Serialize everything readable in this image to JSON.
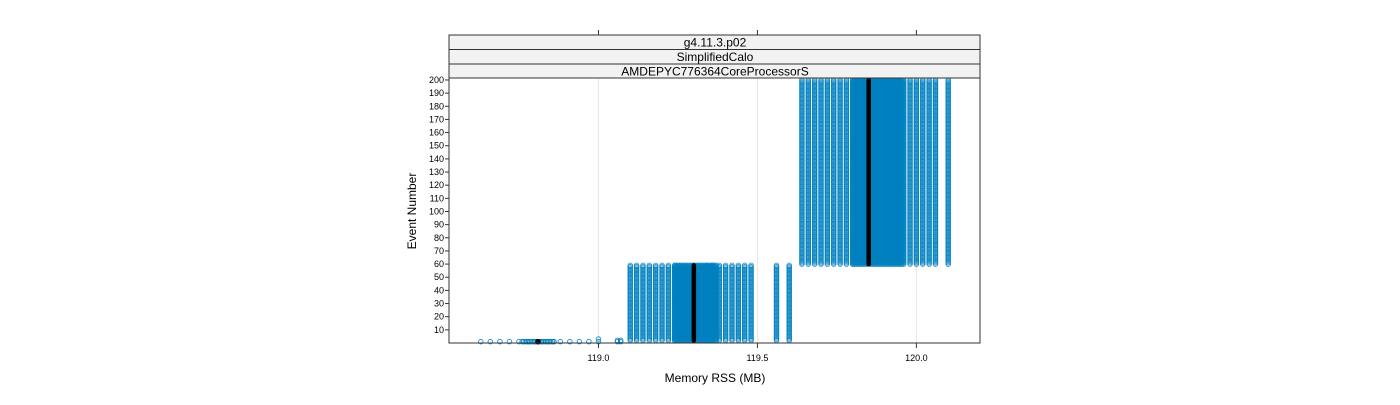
{
  "chart_data": {
    "type": "scatter",
    "strips": [
      "g4.11.3.p02",
      "SimplifiedCalo",
      "AMDEPYC776364CoreProcessorS"
    ],
    "xlabel": "Memory RSS (MB)",
    "ylabel": "Event Number",
    "xlim": [
      118.53,
      120.2
    ],
    "ylim": [
      0,
      201.5
    ],
    "x_ticks": [
      119.0,
      119.5,
      120.0
    ],
    "x_tick_labels": [
      "119.0",
      "119.5",
      "120.0"
    ],
    "y_ticks": [
      10,
      20,
      30,
      40,
      50,
      60,
      70,
      80,
      90,
      100,
      110,
      120,
      130,
      140,
      150,
      160,
      170,
      180,
      190,
      200
    ],
    "y_tick_labels": [
      "10",
      "20",
      "30",
      "40",
      "50",
      "60",
      "70",
      "80",
      "90",
      "100",
      "110",
      "120",
      "130",
      "140",
      "150",
      "160",
      "170",
      "180",
      "190",
      "200"
    ],
    "grid_x": true,
    "point_color": "#0080c0",
    "point_shape": "open circle",
    "median_color": "#000000",
    "groups": [
      {
        "event_range": [
          1,
          1
        ],
        "x_values": [
          118.63,
          118.66,
          118.69,
          118.72,
          118.75,
          118.78,
          118.8,
          118.82,
          118.84,
          118.86,
          118.88,
          118.91,
          118.94,
          118.97,
          119.0
        ],
        "dense_range": [
          118.76,
          118.86
        ],
        "median": 118.81
      },
      {
        "event_range": [
          2,
          59
        ],
        "x_values": [
          119.1,
          119.12,
          119.14,
          119.16,
          119.18,
          119.2,
          119.22,
          119.24,
          119.34,
          119.36,
          119.38,
          119.4,
          119.42,
          119.44,
          119.46,
          119.48
        ],
        "dense_range": [
          119.24,
          119.37
        ],
        "median": 119.3
      },
      {
        "event_range": [
          60,
          200
        ],
        "x_values": [
          119.64,
          119.66,
          119.68,
          119.7,
          119.72,
          119.74,
          119.76,
          119.78,
          119.8,
          119.98,
          120.0,
          120.02,
          120.04,
          120.06
        ],
        "dense_range": [
          119.8,
          119.96
        ],
        "median": 119.85
      }
    ],
    "extra_points": [
      {
        "x": 119.0,
        "y": 3
      },
      {
        "x": 119.06,
        "y": 1
      },
      {
        "x": 119.07,
        "y": 1
      },
      {
        "x": 119.06,
        "y": 2
      },
      {
        "x": 119.07,
        "y": 2
      }
    ],
    "extra_columns": [
      {
        "x": 119.56,
        "y_range": [
          2,
          59
        ]
      },
      {
        "x": 119.6,
        "y_range": [
          2,
          59
        ]
      },
      {
        "x": 120.1,
        "y_range": [
          60,
          200
        ]
      }
    ]
  }
}
